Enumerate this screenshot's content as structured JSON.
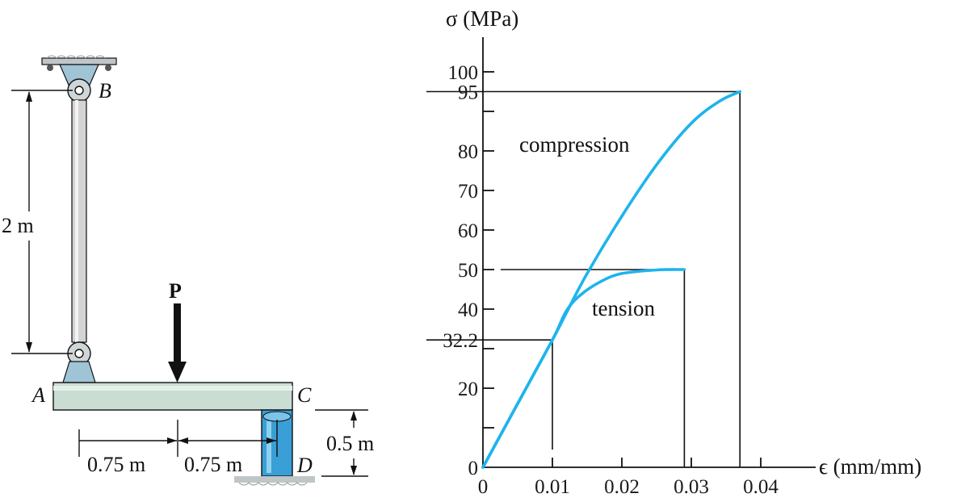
{
  "colors": {
    "curve": "#1eb4ec",
    "beam": "#c9ddd3",
    "bracket": "#9fc4d6",
    "post": "#3a9fd6",
    "rod": "#d4d4d4",
    "ink": "#111111"
  },
  "structure": {
    "labels": {
      "A": "A",
      "B": "B",
      "C": "C",
      "D": "D",
      "P": "P"
    },
    "dimensions": {
      "rod_length": "2 m",
      "span_left": "0.75 m",
      "span_right": "0.75 m",
      "post_height": "0.5 m"
    }
  },
  "chart_data": {
    "type": "line",
    "ylabel": "σ (MPa)",
    "xlabel": "ϵ (mm/mm)",
    "x_tick_labels": [
      "0",
      "0.01",
      "0.02",
      "0.03",
      "0.04"
    ],
    "y_tick_labels": [
      "0",
      "20",
      "32.2",
      "40",
      "50",
      "60",
      "70",
      "80",
      "95",
      "100"
    ],
    "xlim": [
      0,
      0.045
    ],
    "ylim": [
      0,
      105
    ],
    "series": [
      {
        "name": "compression",
        "x": [
          0,
          0.005,
          0.01,
          0.012,
          0.015,
          0.02,
          0.025,
          0.03,
          0.034,
          0.037
        ],
        "y": [
          0,
          16.1,
          32.2,
          39,
          49,
          63.5,
          76.5,
          87,
          92.5,
          95
        ]
      },
      {
        "name": "tension",
        "x": [
          0,
          0.005,
          0.01,
          0.012,
          0.014,
          0.017,
          0.02,
          0.025,
          0.029
        ],
        "y": [
          0,
          16.1,
          32.2,
          39.5,
          43.5,
          47,
          49,
          49.9,
          50
        ]
      }
    ],
    "reference_points": [
      {
        "x": 0.01,
        "y": 32.2
      },
      {
        "x": 0.029,
        "y": 50
      },
      {
        "x": 0.037,
        "y": 95
      }
    ]
  }
}
